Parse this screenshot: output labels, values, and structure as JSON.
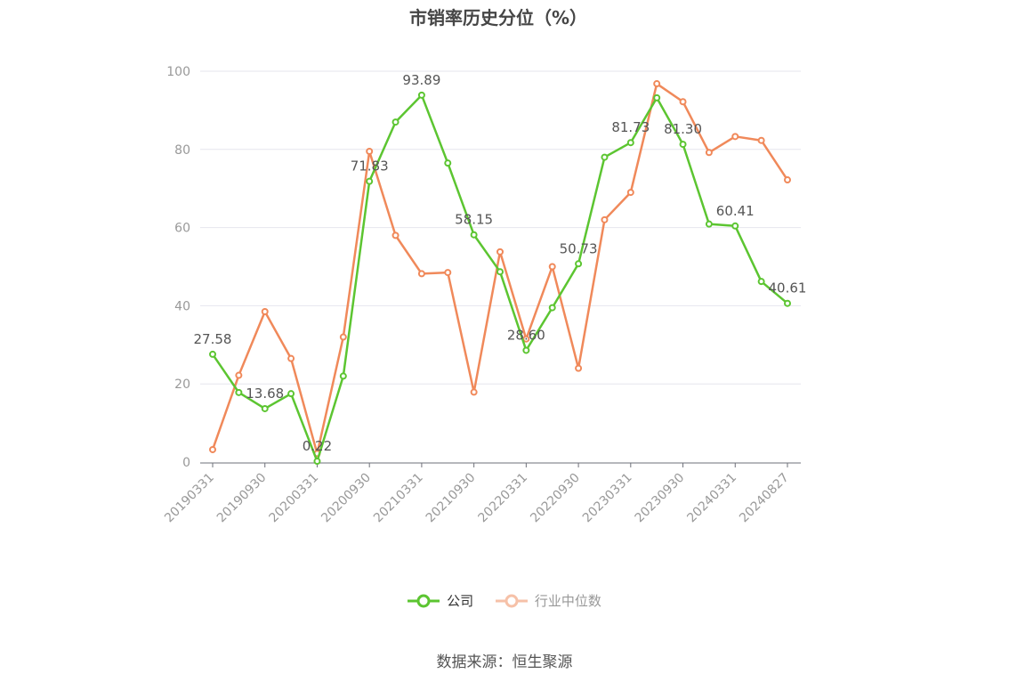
{
  "chart_data": {
    "type": "line",
    "title": "市销率历史分位（%）",
    "x": [
      "20190331",
      "20190630",
      "20190930",
      "20191231",
      "20200331",
      "20200630",
      "20200930",
      "20201231",
      "20210331",
      "20210630",
      "20210930",
      "20211231",
      "20220331",
      "20220630",
      "20220930",
      "20221231",
      "20230331",
      "20230630",
      "20230930",
      "20231231",
      "20240331",
      "20240630",
      "20240827"
    ],
    "x_tick_labels": [
      "20190331",
      "20190930",
      "20200331",
      "20200930",
      "20210331",
      "20210930",
      "20220331",
      "20220930",
      "20230331",
      "20230930",
      "20240331",
      "20240827"
    ],
    "ylim": [
      0,
      100
    ],
    "y_ticks": [
      0,
      20,
      40,
      60,
      80,
      100
    ],
    "grid": true,
    "legend_position": "bottom",
    "series": [
      {
        "name": "公司",
        "color": "#5cc531",
        "values": [
          27.58,
          17.8,
          13.68,
          17.5,
          0.22,
          22.0,
          71.83,
          87.0,
          93.89,
          76.5,
          58.15,
          48.7,
          28.6,
          39.5,
          50.73,
          78.0,
          81.73,
          93.2,
          81.3,
          60.9,
          60.41,
          46.2,
          40.61
        ],
        "labels": {
          "0": "27.58",
          "2": "13.68",
          "4": "0.22",
          "6": "71.83",
          "8": "93.89",
          "10": "58.15",
          "12": "28.60",
          "14": "50.73",
          "16": "81.73",
          "18": "81.30",
          "20": "60.41",
          "22": "40.61"
        }
      },
      {
        "name": "行业中位数",
        "color": "#f0895a",
        "values": [
          3.2,
          22.2,
          38.5,
          26.5,
          2.2,
          32.0,
          79.5,
          58.0,
          48.2,
          48.5,
          17.9,
          53.8,
          31.5,
          50.0,
          24.0,
          62.0,
          69.0,
          96.8,
          92.2,
          79.2,
          83.3,
          82.3,
          72.2
        ]
      }
    ]
  },
  "footer": {
    "source": "数据来源：恒生聚源"
  }
}
